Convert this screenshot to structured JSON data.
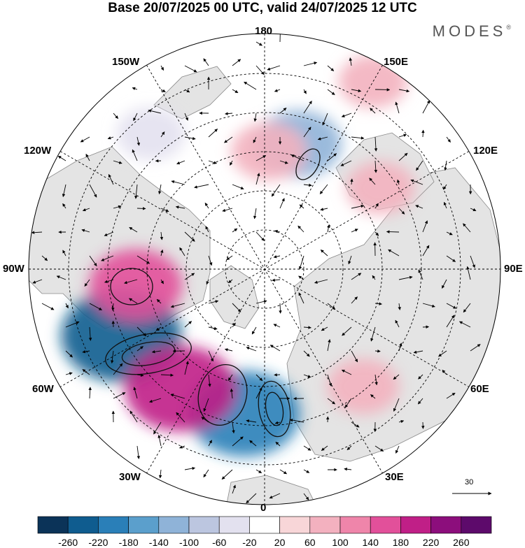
{
  "title": "Base 20/07/2025 00 UTC, valid 24/07/2025 12 UTC",
  "brand": "MODES",
  "brand_mark": "®",
  "longitude_labels": {
    "top": "180",
    "bottom": "0",
    "left": "90W",
    "right": "90E",
    "w150": "150W",
    "e150": "150E",
    "w120": "120W",
    "e120": "120E",
    "w60": "60W",
    "e60": "60E",
    "w30": "30W",
    "e30": "30E"
  },
  "reference_vector": {
    "value": "30"
  },
  "colorbar": {
    "labels": [
      "-260",
      "-220",
      "-180",
      "-140",
      "-100",
      "-60",
      "-20",
      "20",
      "60",
      "100",
      "140",
      "180",
      "220",
      "260"
    ],
    "colors": [
      "#0b3358",
      "#0f5c8f",
      "#2a7fb8",
      "#5b9fcc",
      "#8fb3d8",
      "#bcc6e0",
      "#e3e1ef",
      "#ffffff",
      "#f8d6d8",
      "#f3b1bf",
      "#ef85aa",
      "#e2509a",
      "#c01f87",
      "#8c0e7c",
      "#5d0a6b"
    ]
  },
  "map_colors": {
    "land": "#e4e4e4",
    "ocean": "#ffffff",
    "coast": "#8a8a8a",
    "grid": "#000000"
  },
  "anomalies": [
    {
      "lon": -65,
      "r_frac": 0.67,
      "value": -230
    },
    {
      "lon": -8,
      "r_frac": 0.62,
      "value": -200
    },
    {
      "lon": -35,
      "r_frac": 0.62,
      "value": 200
    },
    {
      "lon": -83,
      "r_frac": 0.55,
      "value": 140
    },
    {
      "lon": 165,
      "r_frac": 0.55,
      "value": -120
    },
    {
      "lon": 178,
      "r_frac": 0.5,
      "value": 80
    },
    {
      "lon": 40,
      "r_frac": 0.65,
      "value": 70
    },
    {
      "lon": 125,
      "r_frac": 0.6,
      "value": 60
    },
    {
      "lon": -140,
      "r_frac": 0.75,
      "value": -60
    },
    {
      "lon": 150,
      "r_frac": 0.92,
      "value": 60
    }
  ]
}
